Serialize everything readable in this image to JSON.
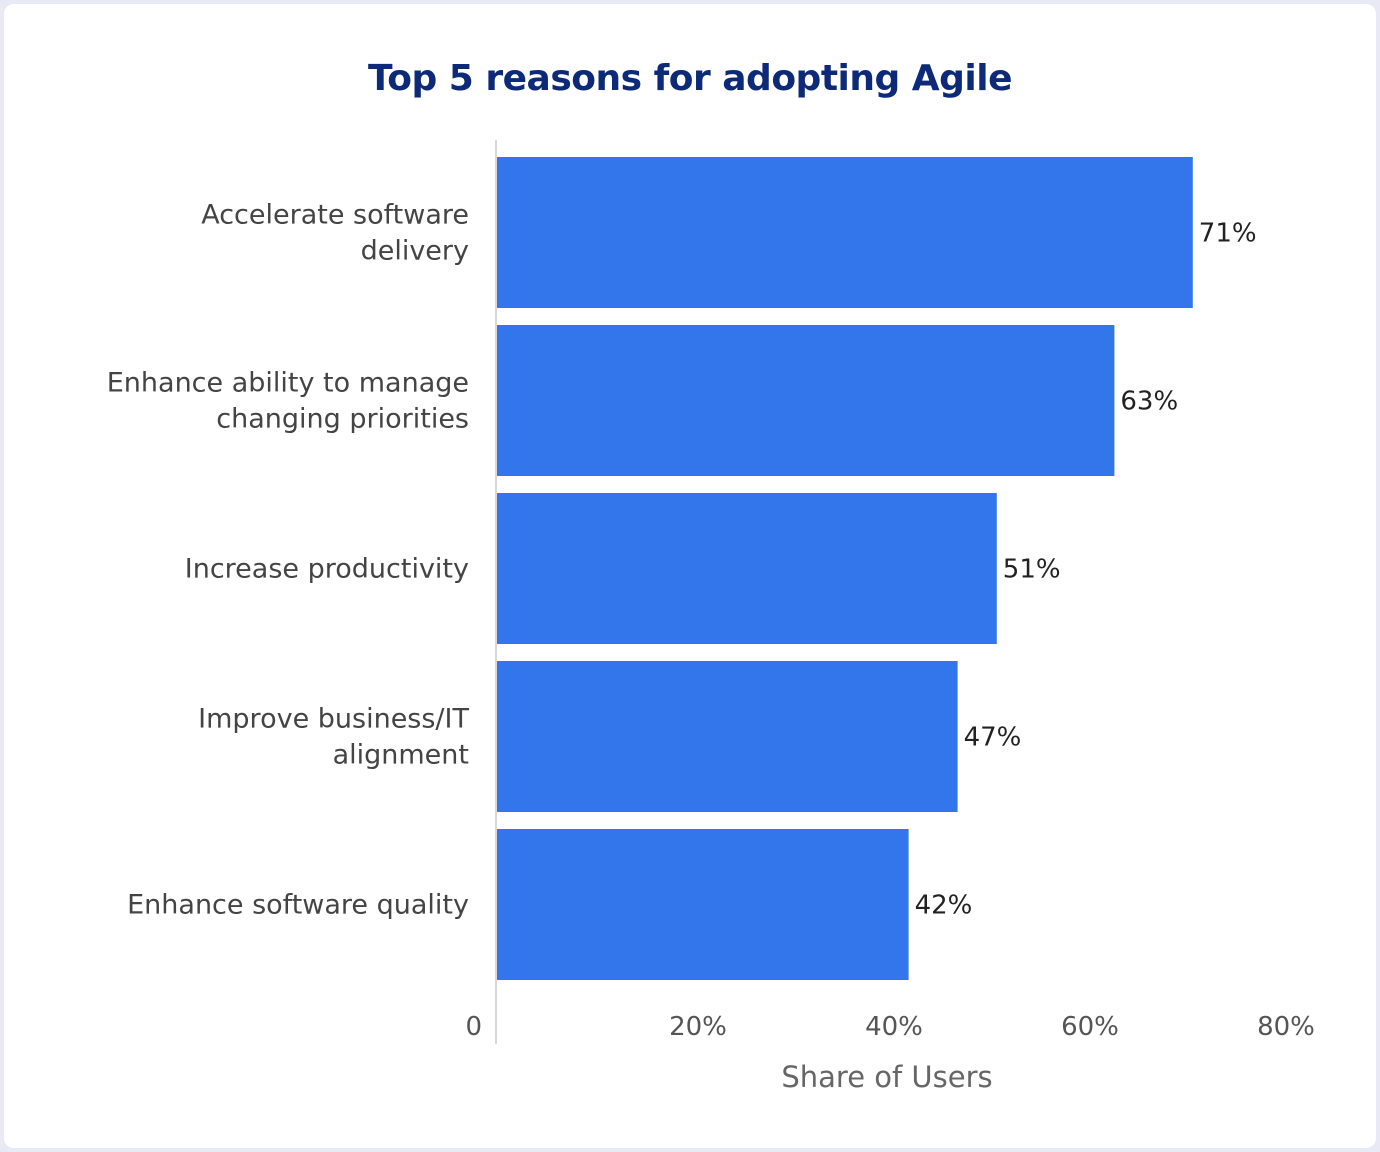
{
  "chart_data": {
    "type": "bar",
    "orientation": "horizontal",
    "title": "Top 5 reasons for adopting Agile",
    "categories": [
      [
        "Accelerate software",
        "delivery"
      ],
      [
        "Enhance ability to manage",
        "changing priorities"
      ],
      [
        "Increase productivity"
      ],
      [
        "Improve business/IT",
        "alignment"
      ],
      [
        "Enhance software quality"
      ]
    ],
    "values": [
      71,
      63,
      51,
      47,
      42
    ],
    "value_labels": [
      "71%",
      "63%",
      "51%",
      "47%",
      "42%"
    ],
    "xlabel": "Share of Users",
    "xlim": [
      0,
      80
    ],
    "x_ticks": [
      0,
      20,
      40,
      60,
      80
    ],
    "x_tick_labels": [
      "0",
      "20%",
      "40%",
      "60%",
      "80%"
    ],
    "grid": false,
    "legend": "none",
    "bar_color": "#3375eb",
    "title_color": "#0d2a78"
  }
}
